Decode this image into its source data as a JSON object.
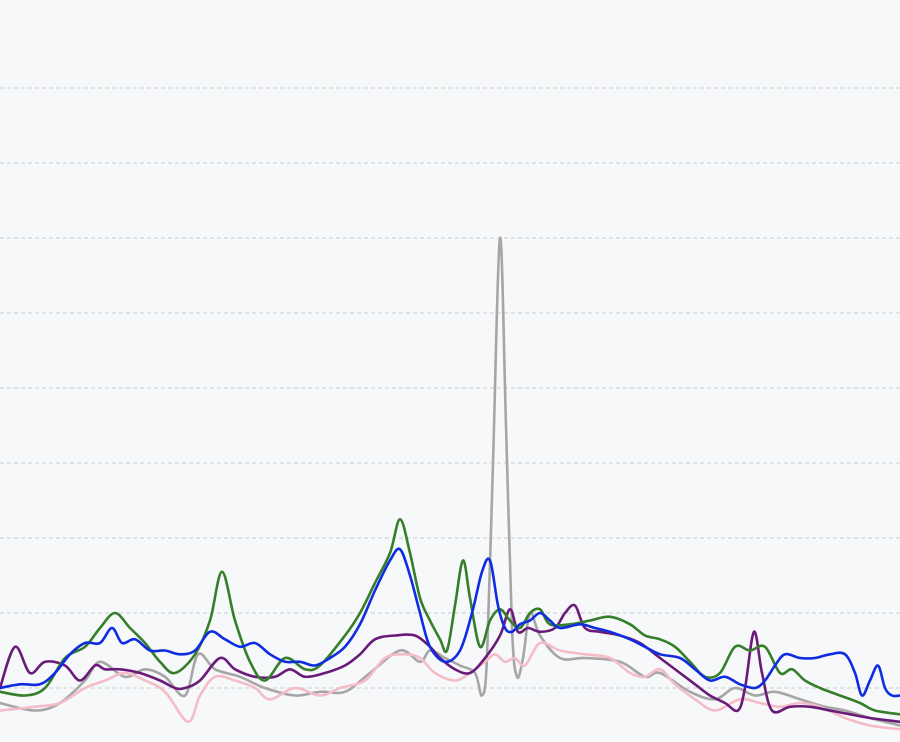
{
  "chart_data": {
    "type": "line",
    "title": "",
    "xlabel": "",
    "ylabel": "",
    "grid": true,
    "x_range": [
      0,
      900
    ],
    "ylim": [
      0,
      100
    ],
    "gridlines": [
      10,
      20,
      30,
      40,
      50,
      60,
      70,
      80,
      90
    ],
    "series": [
      {
        "color": "#a6a6a6",
        "points": [
          [
            0,
            8
          ],
          [
            35,
            7
          ],
          [
            60,
            8
          ],
          [
            85,
            11
          ],
          [
            100,
            13.5
          ],
          [
            125,
            11.5
          ],
          [
            145,
            12.5
          ],
          [
            165,
            11.5
          ],
          [
            185,
            9
          ],
          [
            198,
            14.5
          ],
          [
            215,
            12.5
          ],
          [
            240,
            11.5
          ],
          [
            265,
            10
          ],
          [
            295,
            9
          ],
          [
            320,
            9.5
          ],
          [
            345,
            9.5
          ],
          [
            370,
            12
          ],
          [
            400,
            15
          ],
          [
            420,
            13.5
          ],
          [
            430,
            15
          ],
          [
            445,
            14
          ],
          [
            460,
            13
          ],
          [
            475,
            12
          ],
          [
            482,
            9
          ],
          [
            487,
            14
          ],
          [
            493,
            40
          ],
          [
            500,
            70
          ],
          [
            506,
            45
          ],
          [
            512,
            18
          ],
          [
            517,
            11.5
          ],
          [
            523,
            14
          ],
          [
            530,
            20
          ],
          [
            540,
            17
          ],
          [
            560,
            14
          ],
          [
            585,
            14
          ],
          [
            620,
            13.5
          ],
          [
            645,
            11.5
          ],
          [
            660,
            12
          ],
          [
            690,
            9.5
          ],
          [
            715,
            8.5
          ],
          [
            735,
            10
          ],
          [
            755,
            9
          ],
          [
            775,
            9.5
          ],
          [
            800,
            8.5
          ],
          [
            825,
            7.5
          ],
          [
            845,
            7
          ],
          [
            870,
            6
          ],
          [
            900,
            5
          ]
        ]
      },
      {
        "color": "#f4bcc7",
        "points": [
          [
            0,
            7
          ],
          [
            35,
            7.5
          ],
          [
            60,
            8
          ],
          [
            85,
            10
          ],
          [
            105,
            11
          ],
          [
            125,
            12
          ],
          [
            145,
            11
          ],
          [
            165,
            9.5
          ],
          [
            188,
            5.5
          ],
          [
            200,
            9
          ],
          [
            215,
            11.5
          ],
          [
            235,
            11
          ],
          [
            255,
            10
          ],
          [
            270,
            8.5
          ],
          [
            295,
            10
          ],
          [
            320,
            9
          ],
          [
            340,
            10
          ],
          [
            365,
            11
          ],
          [
            385,
            14
          ],
          [
            405,
            14.5
          ],
          [
            420,
            14
          ],
          [
            435,
            12
          ],
          [
            455,
            11
          ],
          [
            470,
            12
          ],
          [
            485,
            13.5
          ],
          [
            495,
            14.5
          ],
          [
            505,
            13.5
          ],
          [
            515,
            14
          ],
          [
            525,
            13
          ],
          [
            540,
            16
          ],
          [
            560,
            15
          ],
          [
            585,
            14.5
          ],
          [
            610,
            14
          ],
          [
            630,
            12
          ],
          [
            645,
            11.5
          ],
          [
            660,
            12.5
          ],
          [
            675,
            10.5
          ],
          [
            695,
            8.5
          ],
          [
            715,
            7
          ],
          [
            740,
            8.5
          ],
          [
            760,
            8
          ],
          [
            780,
            7.5
          ],
          [
            800,
            8
          ],
          [
            820,
            7.5
          ],
          [
            845,
            6
          ],
          [
            870,
            5
          ],
          [
            900,
            4.5
          ]
        ]
      },
      {
        "color": "#6a1b7a",
        "points": [
          [
            0,
            10
          ],
          [
            15,
            15.5
          ],
          [
            30,
            12
          ],
          [
            45,
            13.5
          ],
          [
            65,
            13
          ],
          [
            80,
            11
          ],
          [
            95,
            13
          ],
          [
            105,
            12.5
          ],
          [
            120,
            12.5
          ],
          [
            140,
            12
          ],
          [
            160,
            11
          ],
          [
            175,
            10
          ],
          [
            185,
            10
          ],
          [
            200,
            11
          ],
          [
            220,
            14
          ],
          [
            235,
            12.5
          ],
          [
            255,
            11.5
          ],
          [
            275,
            11.5
          ],
          [
            290,
            12.5
          ],
          [
            305,
            11.5
          ],
          [
            325,
            12
          ],
          [
            345,
            13
          ],
          [
            360,
            14.5
          ],
          [
            375,
            16.5
          ],
          [
            395,
            17
          ],
          [
            415,
            17
          ],
          [
            430,
            15.5
          ],
          [
            440,
            14
          ],
          [
            455,
            12.5
          ],
          [
            470,
            12
          ],
          [
            485,
            14
          ],
          [
            500,
            17
          ],
          [
            510,
            20.5
          ],
          [
            518,
            17.5
          ],
          [
            528,
            18
          ],
          [
            540,
            17.5
          ],
          [
            555,
            18
          ],
          [
            565,
            20
          ],
          [
            575,
            21
          ],
          [
            585,
            18
          ],
          [
            600,
            17.5
          ],
          [
            620,
            17
          ],
          [
            640,
            16
          ],
          [
            660,
            14
          ],
          [
            680,
            12
          ],
          [
            695,
            10.5
          ],
          [
            710,
            9
          ],
          [
            725,
            8
          ],
          [
            738,
            7
          ],
          [
            745,
            10
          ],
          [
            754,
            17.5
          ],
          [
            762,
            12
          ],
          [
            772,
            7
          ],
          [
            790,
            7.5
          ],
          [
            810,
            7.5
          ],
          [
            830,
            7
          ],
          [
            850,
            6.5
          ],
          [
            870,
            6
          ],
          [
            900,
            5.5
          ]
        ]
      },
      {
        "color": "#357e2a",
        "points": [
          [
            0,
            9.5
          ],
          [
            25,
            9
          ],
          [
            45,
            10
          ],
          [
            65,
            14
          ],
          [
            85,
            15.5
          ],
          [
            100,
            18
          ],
          [
            115,
            20
          ],
          [
            130,
            18
          ],
          [
            145,
            16
          ],
          [
            160,
            13.5
          ],
          [
            175,
            12
          ],
          [
            195,
            14.5
          ],
          [
            210,
            19
          ],
          [
            222,
            25.5
          ],
          [
            235,
            19
          ],
          [
            250,
            13.5
          ],
          [
            265,
            11
          ],
          [
            285,
            14
          ],
          [
            305,
            12.5
          ],
          [
            320,
            13
          ],
          [
            345,
            17
          ],
          [
            360,
            20
          ],
          [
            375,
            24
          ],
          [
            390,
            28
          ],
          [
            400,
            32.5
          ],
          [
            410,
            28
          ],
          [
            420,
            22
          ],
          [
            430,
            19
          ],
          [
            440,
            16.5
          ],
          [
            447,
            15
          ],
          [
            455,
            21
          ],
          [
            463,
            27
          ],
          [
            470,
            22
          ],
          [
            480,
            15.5
          ],
          [
            490,
            19
          ],
          [
            500,
            20.5
          ],
          [
            510,
            19
          ],
          [
            520,
            18
          ],
          [
            530,
            20
          ],
          [
            540,
            20.5
          ],
          [
            550,
            18.5
          ],
          [
            570,
            18.5
          ],
          [
            590,
            19
          ],
          [
            610,
            19.5
          ],
          [
            630,
            18.5
          ],
          [
            645,
            17
          ],
          [
            660,
            16.5
          ],
          [
            675,
            15.5
          ],
          [
            690,
            13.5
          ],
          [
            705,
            11.5
          ],
          [
            720,
            12
          ],
          [
            735,
            15.5
          ],
          [
            750,
            15
          ],
          [
            765,
            15.5
          ],
          [
            780,
            12
          ],
          [
            792,
            12.5
          ],
          [
            805,
            11
          ],
          [
            820,
            10
          ],
          [
            840,
            9
          ],
          [
            860,
            8
          ],
          [
            875,
            7
          ],
          [
            900,
            6.5
          ]
        ]
      },
      {
        "color": "#0f2de0",
        "points": [
          [
            0,
            10
          ],
          [
            20,
            10.5
          ],
          [
            40,
            10.5
          ],
          [
            55,
            12
          ],
          [
            70,
            14.5
          ],
          [
            85,
            16
          ],
          [
            100,
            16
          ],
          [
            112,
            18
          ],
          [
            122,
            16
          ],
          [
            135,
            16.5
          ],
          [
            150,
            15
          ],
          [
            165,
            15
          ],
          [
            180,
            14.5
          ],
          [
            195,
            15
          ],
          [
            210,
            17.5
          ],
          [
            225,
            16.5
          ],
          [
            240,
            15.5
          ],
          [
            255,
            16
          ],
          [
            270,
            14.5
          ],
          [
            285,
            13.5
          ],
          [
            300,
            13.5
          ],
          [
            315,
            13
          ],
          [
            330,
            14
          ],
          [
            345,
            15.5
          ],
          [
            360,
            18.5
          ],
          [
            375,
            23
          ],
          [
            390,
            27
          ],
          [
            400,
            28.5
          ],
          [
            410,
            25
          ],
          [
            420,
            20
          ],
          [
            430,
            15.5
          ],
          [
            445,
            13.5
          ],
          [
            460,
            15
          ],
          [
            472,
            20
          ],
          [
            482,
            25.5
          ],
          [
            490,
            27
          ],
          [
            498,
            21
          ],
          [
            505,
            18
          ],
          [
            512,
            17.5
          ],
          [
            520,
            18.5
          ],
          [
            530,
            19
          ],
          [
            540,
            20
          ],
          [
            550,
            19
          ],
          [
            560,
            18
          ],
          [
            580,
            18.5
          ],
          [
            595,
            18
          ],
          [
            610,
            17.5
          ],
          [
            630,
            16.5
          ],
          [
            645,
            15.5
          ],
          [
            660,
            14.5
          ],
          [
            680,
            14
          ],
          [
            695,
            12.5
          ],
          [
            710,
            11
          ],
          [
            725,
            11.5
          ],
          [
            740,
            10.5
          ],
          [
            755,
            10
          ],
          [
            765,
            11
          ],
          [
            775,
            13
          ],
          [
            785,
            14.5
          ],
          [
            800,
            14
          ],
          [
            815,
            14
          ],
          [
            830,
            14.5
          ],
          [
            845,
            14.5
          ],
          [
            855,
            12
          ],
          [
            862,
            9
          ],
          [
            870,
            11
          ],
          [
            878,
            13
          ],
          [
            885,
            10
          ],
          [
            892,
            9
          ],
          [
            900,
            9
          ]
        ]
      }
    ]
  }
}
